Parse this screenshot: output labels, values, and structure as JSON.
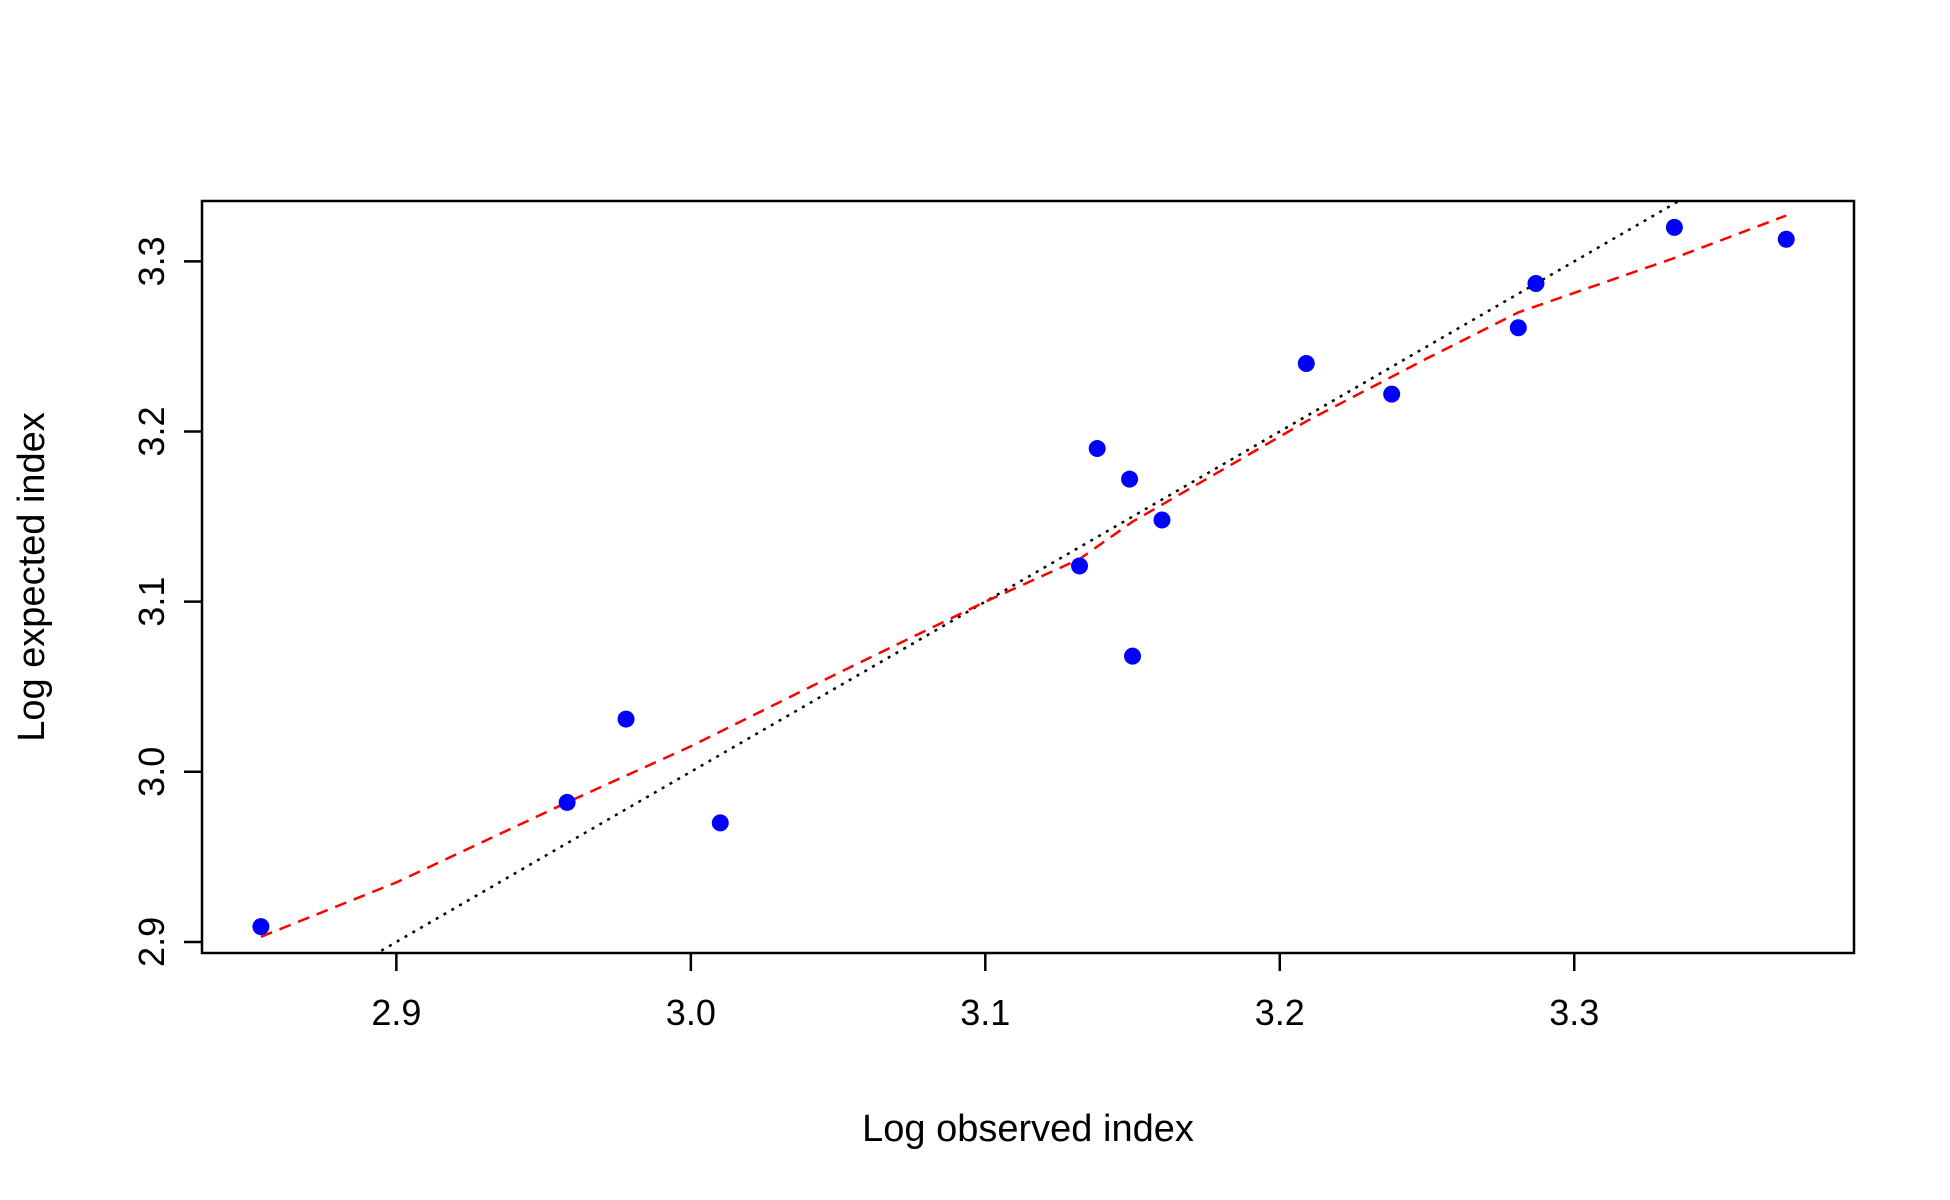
{
  "chart_data": {
    "type": "scatter",
    "title": "",
    "xlabel": "Log observed index",
    "ylabel": "Log expected index",
    "xlim": [
      2.834,
      3.395
    ],
    "ylim": [
      2.8935,
      3.3355
    ],
    "x_ticks": [
      2.9,
      3.0,
      3.1,
      3.2,
      3.3
    ],
    "x_tick_labels": [
      "2.9",
      "3.0",
      "3.1",
      "3.2",
      "3.3"
    ],
    "y_ticks": [
      2.9,
      3.0,
      3.1,
      3.2,
      3.3
    ],
    "y_tick_labels": [
      "2.9",
      "3.0",
      "3.1",
      "3.2",
      "3.3"
    ],
    "grid": false,
    "series": [
      {
        "kind": "points",
        "color": "#0000ff",
        "points": [
          [
            2.854,
            2.909
          ],
          [
            2.958,
            2.982
          ],
          [
            2.978,
            3.031
          ],
          [
            3.01,
            2.97
          ],
          [
            3.132,
            3.121
          ],
          [
            3.138,
            3.19
          ],
          [
            3.149,
            3.172
          ],
          [
            3.15,
            3.068
          ],
          [
            3.16,
            3.148
          ],
          [
            3.209,
            3.24
          ],
          [
            3.238,
            3.222
          ],
          [
            3.281,
            3.261
          ],
          [
            3.287,
            3.287
          ],
          [
            3.334,
            3.32
          ],
          [
            3.372,
            3.313
          ]
        ]
      },
      {
        "kind": "line",
        "style": "dotted",
        "color": "#000000",
        "points": [
          [
            2.834,
            2.834
          ],
          [
            3.3355,
            3.3355
          ]
        ]
      },
      {
        "kind": "line",
        "style": "dashed",
        "color": "#ff0000",
        "points": [
          [
            2.854,
            2.903
          ],
          [
            2.9,
            2.935
          ],
          [
            2.958,
            2.982
          ],
          [
            3.0,
            3.015
          ],
          [
            3.05,
            3.058
          ],
          [
            3.1,
            3.1
          ],
          [
            3.132,
            3.125
          ],
          [
            3.15,
            3.147
          ],
          [
            3.209,
            3.206
          ],
          [
            3.25,
            3.243
          ],
          [
            3.281,
            3.27
          ],
          [
            3.334,
            3.302
          ],
          [
            3.372,
            3.327
          ]
        ]
      }
    ]
  }
}
